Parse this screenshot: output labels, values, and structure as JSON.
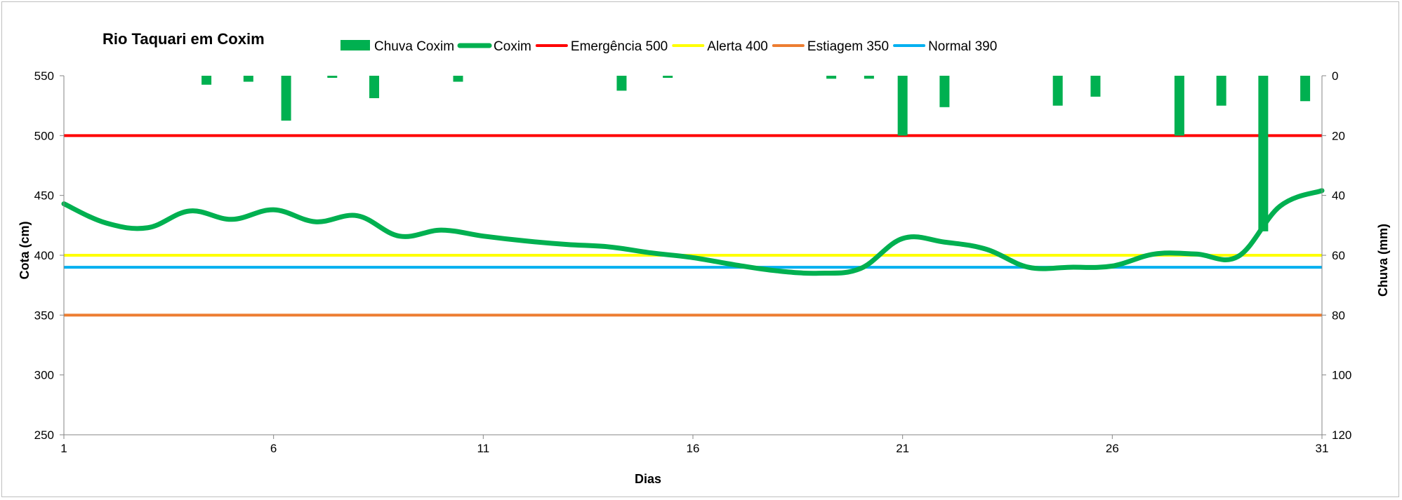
{
  "chart_data": {
    "type": "line",
    "title": "Rio Taquari em Coxim",
    "xlabel": "Dias",
    "ylabel": "Cota  (cm)",
    "y2label": "Chuva (mm)",
    "xlim": [
      1,
      31
    ],
    "ylim": [
      250,
      550
    ],
    "y2lim": [
      0,
      120
    ],
    "y2_inverted": true,
    "x_ticks": [
      1,
      6,
      11,
      16,
      21,
      26,
      31
    ],
    "y_ticks": [
      250,
      300,
      350,
      400,
      450,
      500,
      550
    ],
    "y2_ticks": [
      0,
      20,
      40,
      60,
      80,
      100,
      120
    ],
    "legend_position": "top",
    "grid": false,
    "series": [
      {
        "name": "Chuva Coxim",
        "type": "bar",
        "axis": "secondary",
        "color": "#00b050",
        "x": [
          4.4,
          5.4,
          6.3,
          7.4,
          8.4,
          10.4,
          14.3,
          15.4,
          19.3,
          20.2,
          21,
          22,
          24.7,
          25.6,
          27.6,
          28.6,
          29.6,
          30.6
        ],
        "values": [
          3,
          2,
          15,
          0.5,
          7.5,
          2,
          5,
          0.5,
          1,
          1,
          20,
          10.5,
          10,
          7,
          20,
          10,
          52,
          8.5
        ]
      },
      {
        "name": "Coxim",
        "type": "line",
        "axis": "primary",
        "color": "#00b050",
        "x": [
          1,
          2,
          3,
          4,
          5,
          6,
          7,
          8,
          9,
          10,
          11,
          12,
          13,
          14,
          15,
          16,
          17,
          18,
          19,
          20,
          21,
          22,
          23,
          24,
          25,
          26,
          27,
          28,
          29,
          30,
          31
        ],
        "values": [
          443,
          427,
          423,
          437,
          430,
          438,
          428,
          433,
          416,
          421,
          416,
          412,
          409,
          407,
          402,
          398,
          392,
          387,
          385,
          389,
          414,
          411,
          405,
          390,
          390,
          391,
          401,
          401,
          399,
          441,
          454
        ]
      },
      {
        "name": "Emergência 500",
        "type": "line",
        "axis": "primary",
        "color": "#ff0000",
        "x": [
          1,
          31
        ],
        "values": [
          500,
          500
        ]
      },
      {
        "name": "Alerta 400",
        "type": "line",
        "axis": "primary",
        "color": "#ffff00",
        "x": [
          1,
          31
        ],
        "values": [
          400,
          400
        ]
      },
      {
        "name": "Estiagem 350",
        "type": "line",
        "axis": "primary",
        "color": "#ed7d31",
        "x": [
          1,
          31
        ],
        "values": [
          350,
          350
        ]
      },
      {
        "name": "Normal  390",
        "type": "line",
        "axis": "primary",
        "color": "#00b0f0",
        "x": [
          1,
          31
        ],
        "values": [
          390,
          390
        ]
      }
    ]
  }
}
